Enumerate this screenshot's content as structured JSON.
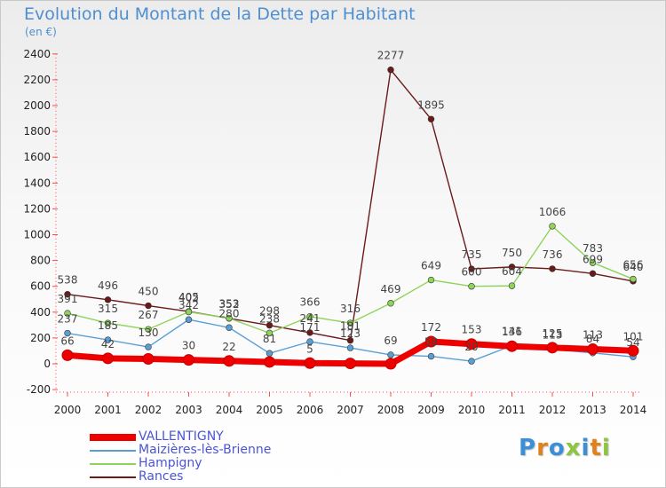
{
  "title": "Evolution du Montant de la Dette par Habitant",
  "subtitle": "(en €)",
  "logo": {
    "text": "Proxiti",
    "colors": [
      "#3b8fd8",
      "#e2801b",
      "#3b8fd8",
      "#8cc63f",
      "#3b8fd8",
      "#e2801b",
      "#8cc63f"
    ]
  },
  "chart_data": {
    "type": "line",
    "x": [
      "2000",
      "2001",
      "2002",
      "2003",
      "2004",
      "2005",
      "2006",
      "2007",
      "2008",
      "2009",
      "2010",
      "2011",
      "2012",
      "2013",
      "2014"
    ],
    "ylim": [
      -200,
      2400
    ],
    "yticks": [
      -200,
      0,
      200,
      400,
      600,
      800,
      1000,
      1200,
      1400,
      1600,
      1800,
      2000,
      2200,
      2400
    ],
    "grid": false,
    "legend_position": "bottom-left",
    "series": [
      {
        "name": "VALLENTIGNY",
        "color": "#ee0000",
        "values": [
          66,
          42,
          38,
          30,
          22,
          14,
          5,
          3,
          0,
          172,
          153,
          136,
          125,
          113,
          101
        ],
        "labels": [
          "66",
          "42",
          "",
          "30",
          "22",
          "",
          "5",
          "",
          "",
          "172",
          "153",
          "136",
          "125",
          "113",
          "101"
        ]
      },
      {
        "name": "Maizières-lès-Brienne",
        "color": "#5a9fd4",
        "values": [
          237,
          185,
          130,
          342,
          280,
          81,
          171,
          123,
          69,
          58,
          20,
          141,
          113,
          84,
          54
        ],
        "labels": [
          "237",
          "185",
          "130",
          "342",
          "280",
          "81",
          "171",
          "123",
          "69",
          "58",
          "20",
          "141",
          "113",
          "84",
          "54"
        ]
      },
      {
        "name": "Hampigny",
        "color": "#8fd45a",
        "values": [
          391,
          315,
          267,
          402,
          353,
          238,
          366,
          316,
          469,
          649,
          600,
          604,
          1066,
          783,
          656
        ],
        "labels": [
          "391",
          "315",
          "267",
          "402",
          "353",
          "238",
          "366",
          "316",
          "469",
          "649",
          "600",
          "604",
          "1066",
          "783",
          "656"
        ]
      },
      {
        "name": "Rances",
        "color": "#6b1a1a",
        "values": [
          538,
          496,
          450,
          405,
          352,
          298,
          241,
          181,
          2277,
          1895,
          735,
          750,
          736,
          699,
          640
        ],
        "labels": [
          "538",
          "496",
          "450",
          "405",
          "352",
          "298",
          "241",
          "181",
          "2277",
          "1895",
          "735",
          "750",
          "736",
          "699",
          "640"
        ]
      }
    ]
  }
}
